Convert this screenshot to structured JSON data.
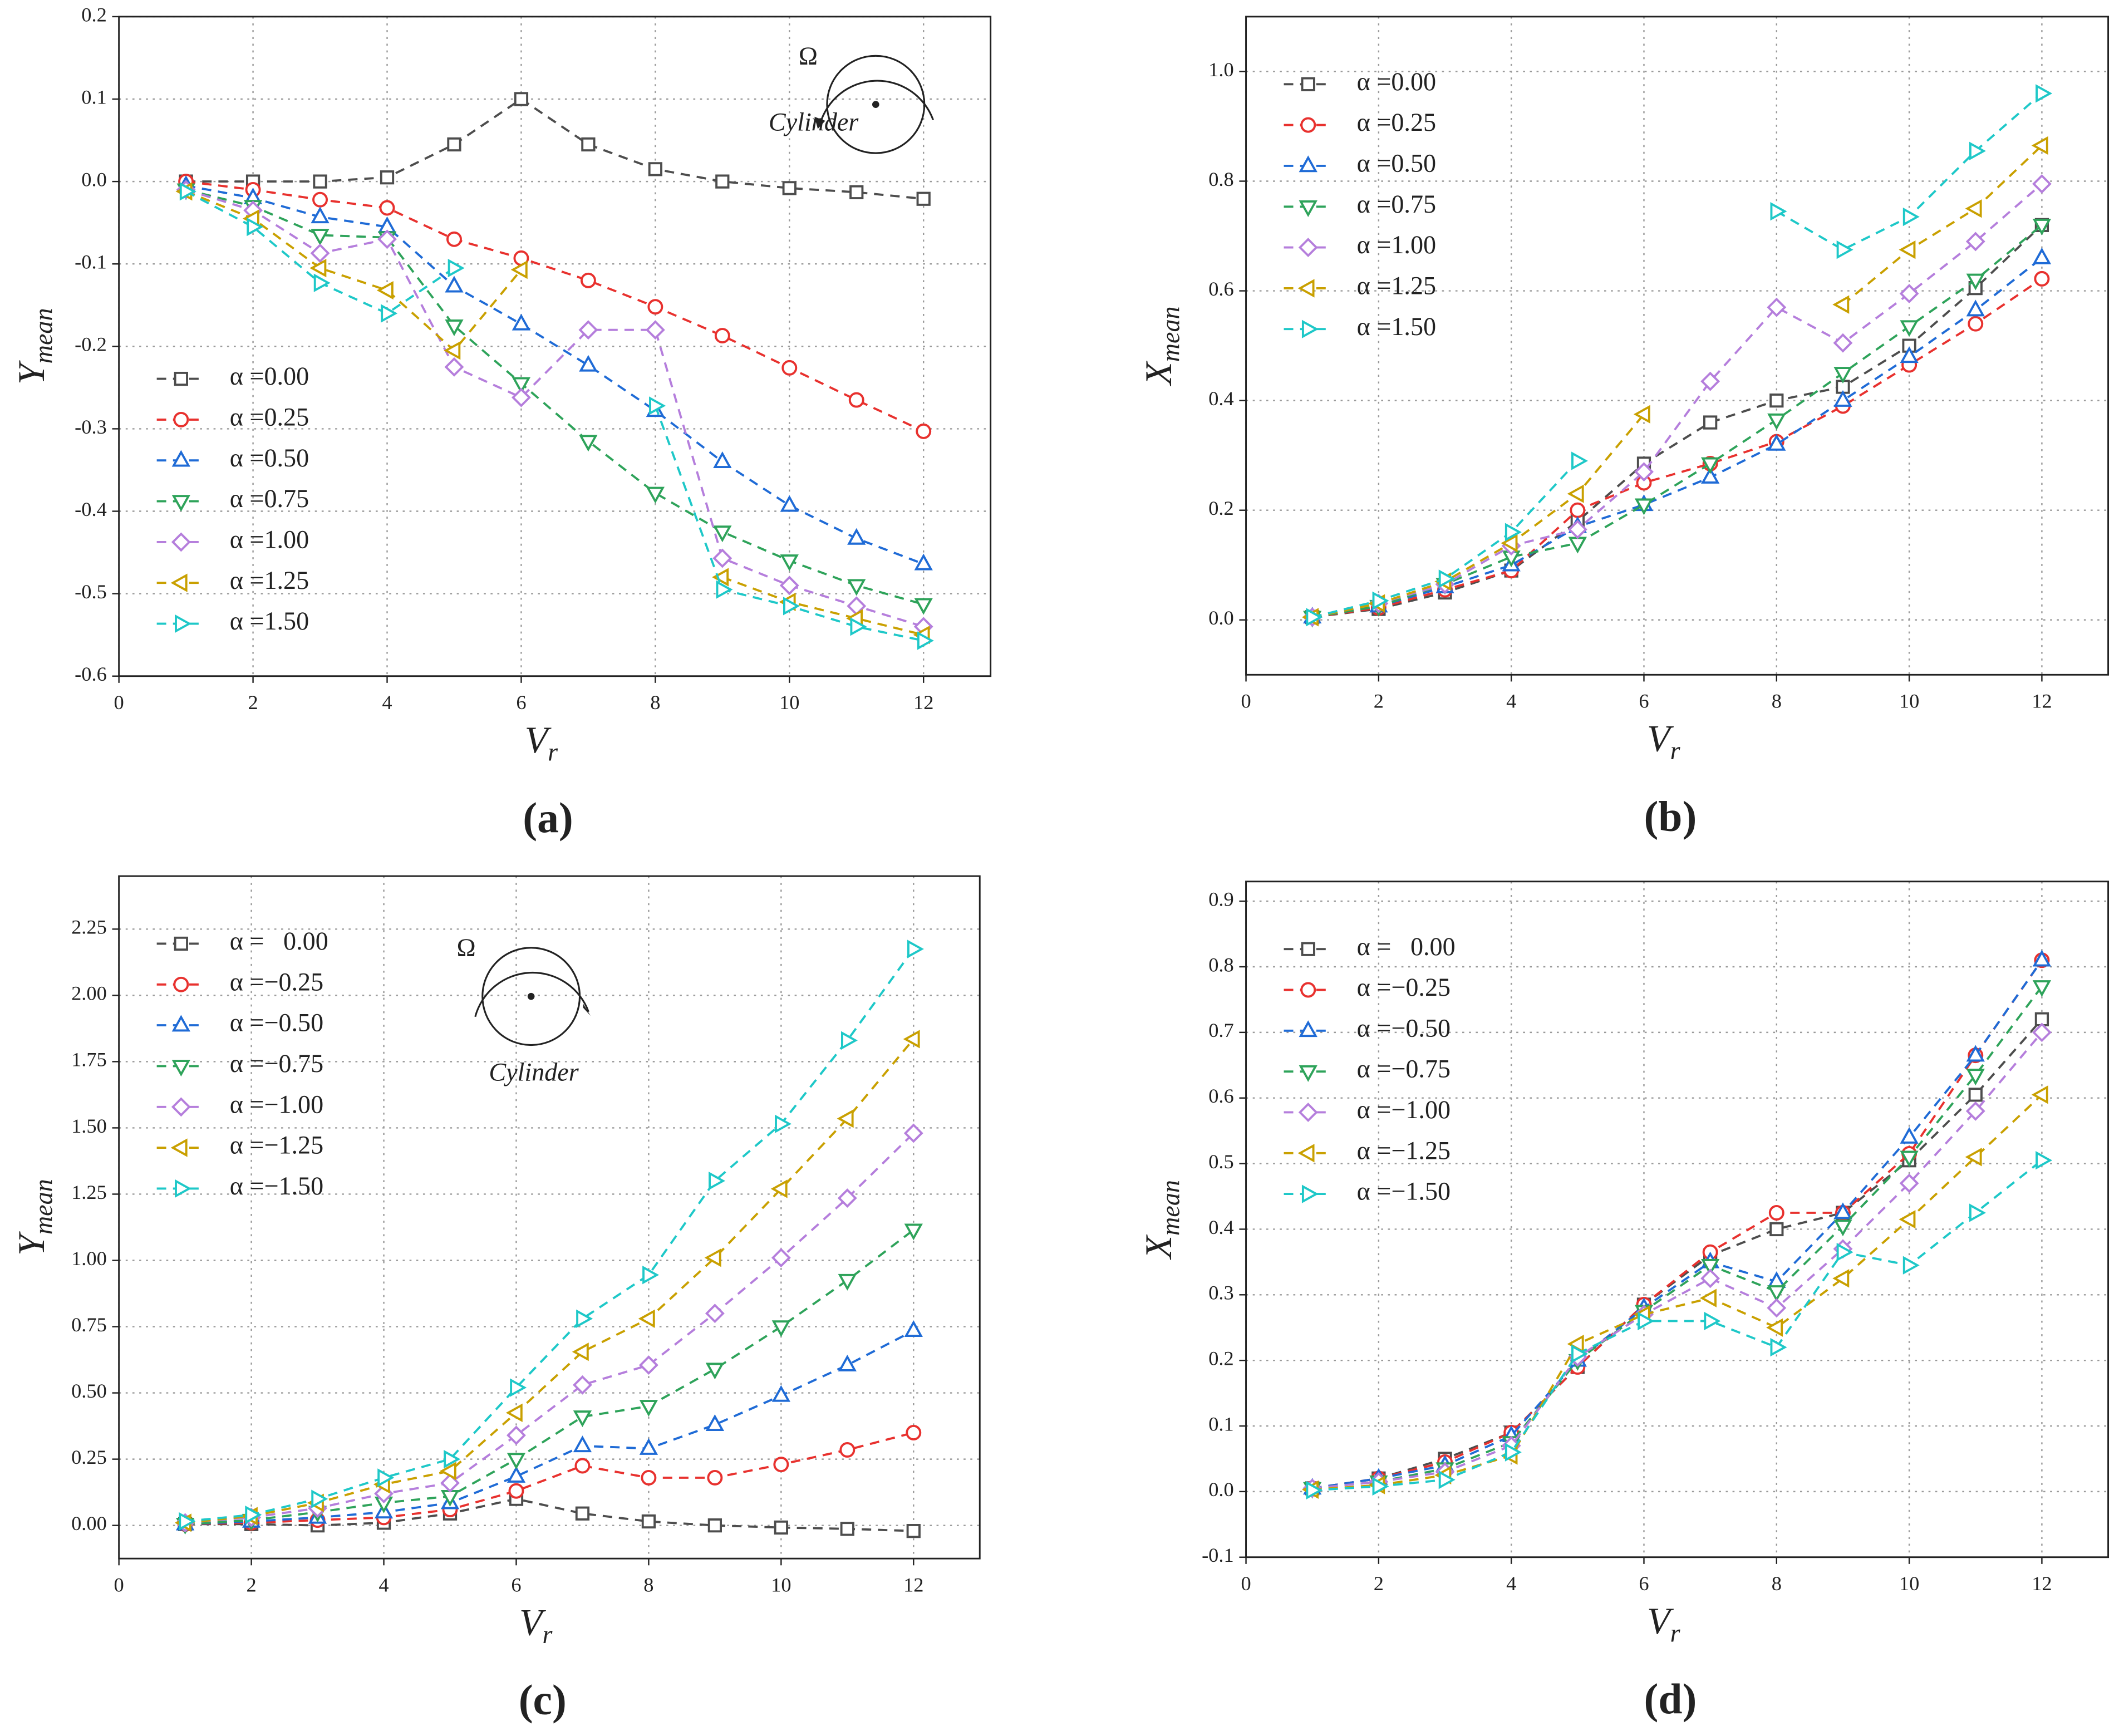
{
  "chart_data": [
    {
      "type": "line",
      "panel": "(a)",
      "xlabel": "V",
      "xlabel_sub": "r",
      "ylabel": "Y",
      "ylabel_sub": "mean",
      "inset": {
        "omega": "Ω",
        "label": "Cylinder",
        "rotation": "counterclockwise"
      },
      "x": [
        1,
        2,
        3,
        4,
        5,
        6,
        7,
        8,
        9,
        10,
        11,
        12
      ],
      "xlim": [
        0,
        13
      ],
      "xticks": [
        0,
        2,
        4,
        6,
        8,
        10,
        12
      ],
      "ylim": [
        -0.6,
        0.2
      ],
      "yticks": [
        -0.6,
        -0.5,
        -0.4,
        -0.3,
        -0.2,
        -0.1,
        {
          "value": 0,
          "label": "0.0"
        },
        0.1,
        0.2
      ],
      "grid": true,
      "legend": "lower left",
      "series": [
        {
          "name": "α =0.00",
          "color": "#4d4d4d",
          "marker": "square",
          "values": [
            0,
            0,
            0,
            0.005,
            0.045,
            0.1,
            0.045,
            0.015,
            0,
            -0.008,
            -0.013,
            -0.021
          ]
        },
        {
          "name": "α =0.25",
          "color": "#e8312e",
          "marker": "circle",
          "values": [
            0,
            -0.01,
            -0.022,
            -0.032,
            -0.07,
            -0.093,
            -0.12,
            -0.152,
            -0.187,
            -0.226,
            -0.265,
            -0.303
          ]
        },
        {
          "name": "α =0.50",
          "color": "#1f6bd6",
          "marker": "triangle-up",
          "values": [
            -0.005,
            -0.02,
            -0.043,
            -0.055,
            -0.127,
            -0.173,
            -0.223,
            -0.278,
            -0.34,
            -0.393,
            -0.433,
            -0.464
          ]
        },
        {
          "name": "α =0.75",
          "color": "#2ea35a",
          "marker": "triangle-down",
          "values": [
            -0.01,
            -0.03,
            -0.065,
            -0.068,
            -0.175,
            -0.245,
            -0.315,
            -0.378,
            -0.425,
            -0.46,
            -0.49,
            -0.513
          ]
        },
        {
          "name": "α =1.00",
          "color": "#b57edc",
          "marker": "diamond",
          "values": [
            -0.01,
            -0.035,
            -0.087,
            -0.07,
            -0.225,
            -0.262,
            -0.18,
            -0.18,
            -0.457,
            -0.49,
            -0.515,
            -0.54
          ]
        },
        {
          "name": "α =1.25",
          "color": "#c9a000",
          "marker": "triangle-left",
          "values": [
            -0.012,
            -0.045,
            -0.105,
            -0.132,
            -0.205,
            -0.107,
            null,
            null,
            -0.48,
            -0.51,
            -0.53,
            -0.55
          ]
        },
        {
          "name": "α =1.50",
          "color": "#1ec8c8",
          "marker": "triangle-right",
          "values": [
            -0.012,
            -0.055,
            -0.123,
            -0.16,
            -0.105,
            null,
            null,
            -0.272,
            -0.495,
            -0.515,
            -0.54,
            -0.557
          ]
        }
      ]
    },
    {
      "type": "line",
      "panel": "(b)",
      "xlabel": "V",
      "xlabel_sub": "r",
      "ylabel": "X",
      "ylabel_sub": "mean",
      "x": [
        1,
        2,
        3,
        4,
        5,
        6,
        7,
        8,
        9,
        10,
        11,
        12
      ],
      "xlim": [
        0,
        13
      ],
      "xticks": [
        0,
        2,
        4,
        6,
        8,
        10,
        12
      ],
      "ylim": [
        -0.1,
        1.1
      ],
      "yticks": [
        {
          "value": 0,
          "label": "0.0"
        },
        0.2,
        0.4,
        0.6,
        0.8,
        {
          "value": 1,
          "label": "1.0"
        }
      ],
      "grid": true,
      "legend": "upper left",
      "series": [
        {
          "name": "α =0.00",
          "color": "#4d4d4d",
          "marker": "square",
          "values": [
            0.005,
            0.02,
            0.05,
            0.09,
            0.18,
            0.285,
            0.36,
            0.4,
            0.425,
            0.5,
            0.605,
            0.72
          ]
        },
        {
          "name": "α =0.25",
          "color": "#e8312e",
          "marker": "circle",
          "values": [
            0.005,
            0.022,
            0.055,
            0.09,
            0.2,
            0.25,
            0.285,
            0.325,
            0.39,
            0.465,
            0.54,
            0.622
          ]
        },
        {
          "name": "α =0.50",
          "color": "#1f6bd6",
          "marker": "triangle-up",
          "values": [
            0.005,
            0.025,
            0.06,
            0.1,
            0.17,
            0.21,
            0.26,
            0.32,
            0.4,
            0.48,
            0.565,
            0.66
          ]
        },
        {
          "name": "α =0.75",
          "color": "#2ea35a",
          "marker": "triangle-down",
          "values": [
            0.005,
            0.025,
            0.065,
            0.115,
            0.14,
            0.21,
            0.285,
            0.365,
            0.45,
            0.535,
            0.62,
            0.72
          ]
        },
        {
          "name": "α =1.00",
          "color": "#b57edc",
          "marker": "diamond",
          "values": [
            0.005,
            0.03,
            0.065,
            0.135,
            0.165,
            0.27,
            0.435,
            0.57,
            0.505,
            0.595,
            0.69,
            0.795
          ]
        },
        {
          "name": "α =1.25",
          "color": "#c9a000",
          "marker": "triangle-left",
          "values": [
            0.005,
            0.03,
            0.07,
            0.14,
            0.23,
            0.375,
            null,
            null,
            0.575,
            0.675,
            0.75,
            0.865
          ]
        },
        {
          "name": "α =1.50",
          "color": "#1ec8c8",
          "marker": "triangle-right",
          "values": [
            0.005,
            0.035,
            0.075,
            0.16,
            0.29,
            null,
            null,
            0.745,
            0.675,
            0.735,
            0.855,
            0.96
          ]
        }
      ]
    },
    {
      "type": "line",
      "panel": "(c)",
      "xlabel": "V",
      "xlabel_sub": "r",
      "ylabel": "Y",
      "ylabel_sub": "mean",
      "inset": {
        "omega": "Ω",
        "label": "Cylinder",
        "rotation": "clockwise"
      },
      "x": [
        1,
        2,
        3,
        4,
        5,
        6,
        7,
        8,
        9,
        10,
        11,
        12
      ],
      "xlim": [
        0,
        13
      ],
      "xticks": [
        0,
        2,
        4,
        6,
        8,
        10,
        12
      ],
      "ylim": [
        -0.125,
        2.45
      ],
      "yticks": [
        {
          "value": 0,
          "label": "0.00"
        },
        0.25,
        {
          "value": 0.5,
          "label": "0.50"
        },
        0.75,
        {
          "value": 1,
          "label": "1.00"
        },
        1.25,
        {
          "value": 1.5,
          "label": "1.50"
        },
        1.75,
        {
          "value": 2,
          "label": "2.00"
        },
        2.25
      ],
      "grid": true,
      "legend": "upper left",
      "series": [
        {
          "name": "α =   0.00",
          "color": "#4d4d4d",
          "marker": "square",
          "values": [
            0.005,
            0.005,
            0,
            0.01,
            0.045,
            0.1,
            0.045,
            0.015,
            0,
            -0.008,
            -0.013,
            -0.021
          ]
        },
        {
          "name": "α =−0.25",
          "color": "#e8312e",
          "marker": "circle",
          "values": [
            0.005,
            0.01,
            0.02,
            0.03,
            0.06,
            0.13,
            0.225,
            0.18,
            0.18,
            0.23,
            0.285,
            0.35
          ]
        },
        {
          "name": "α =−0.50",
          "color": "#1f6bd6",
          "marker": "triangle-up",
          "values": [
            0.005,
            0.015,
            0.03,
            0.05,
            0.085,
            0.185,
            0.3,
            0.29,
            0.38,
            0.49,
            0.605,
            0.735
          ]
        },
        {
          "name": "α =−0.75",
          "color": "#2ea35a",
          "marker": "triangle-down",
          "values": [
            0.005,
            0.02,
            0.05,
            0.085,
            0.11,
            0.25,
            0.41,
            0.45,
            0.59,
            0.75,
            0.925,
            1.115
          ]
        },
        {
          "name": "α =−1.00",
          "color": "#b57edc",
          "marker": "diamond",
          "values": [
            0.01,
            0.03,
            0.065,
            0.12,
            0.16,
            0.34,
            0.53,
            0.605,
            0.8,
            1.01,
            1.235,
            1.48
          ]
        },
        {
          "name": "α =−1.25",
          "color": "#c9a000",
          "marker": "triangle-left",
          "values": [
            0.01,
            0.035,
            0.085,
            0.155,
            0.205,
            0.425,
            0.655,
            0.78,
            1.01,
            1.27,
            1.535,
            1.835
          ]
        },
        {
          "name": "α =−1.50",
          "color": "#1ec8c8",
          "marker": "triangle-right",
          "values": [
            0.015,
            0.04,
            0.1,
            0.18,
            0.25,
            0.52,
            0.78,
            0.945,
            1.3,
            1.515,
            1.83,
            2.175
          ]
        }
      ]
    },
    {
      "type": "line",
      "panel": "(d)",
      "xlabel": "V",
      "xlabel_sub": "r",
      "ylabel": "X",
      "ylabel_sub": "mean",
      "x": [
        1,
        2,
        3,
        4,
        5,
        6,
        7,
        8,
        9,
        10,
        11,
        12
      ],
      "xlim": [
        0,
        13
      ],
      "xticks": [
        0,
        2,
        4,
        6,
        8,
        10,
        12
      ],
      "ylim": [
        -0.1,
        0.93
      ],
      "yticks": [
        -0.1,
        {
          "value": 0,
          "label": "0.0"
        },
        0.1,
        0.2,
        0.3,
        0.4,
        0.5,
        0.6,
        0.7,
        0.8,
        0.9
      ],
      "grid": true,
      "legend": "upper left",
      "series": [
        {
          "name": "α =   0.00",
          "color": "#4d4d4d",
          "marker": "square",
          "values": [
            0.005,
            0.02,
            0.05,
            0.09,
            0.19,
            0.285,
            0.36,
            0.4,
            0.425,
            0.505,
            0.605,
            0.72
          ]
        },
        {
          "name": "α =−0.25",
          "color": "#e8312e",
          "marker": "circle",
          "values": [
            0.005,
            0.02,
            0.045,
            0.09,
            0.19,
            0.285,
            0.365,
            0.425,
            0.425,
            0.515,
            0.665,
            0.81
          ]
        },
        {
          "name": "α =−0.50",
          "color": "#1f6bd6",
          "marker": "triangle-up",
          "values": [
            0.005,
            0.02,
            0.04,
            0.085,
            0.2,
            0.28,
            0.35,
            0.32,
            0.425,
            0.54,
            0.665,
            0.81
          ]
        },
        {
          "name": "α =−0.75",
          "color": "#2ea35a",
          "marker": "triangle-down",
          "values": [
            0.005,
            0.015,
            0.035,
            0.075,
            0.2,
            0.275,
            0.345,
            0.305,
            0.405,
            0.51,
            0.635,
            0.77
          ]
        },
        {
          "name": "α =−1.00",
          "color": "#b57edc",
          "marker": "diamond",
          "values": [
            0.005,
            0.015,
            0.03,
            0.07,
            0.205,
            0.27,
            0.325,
            0.28,
            0.37,
            0.47,
            0.58,
            0.7
          ]
        },
        {
          "name": "α =−1.25",
          "color": "#c9a000",
          "marker": "triangle-left",
          "values": [
            0.003,
            0.01,
            0.025,
            0.055,
            0.225,
            0.27,
            0.295,
            0.25,
            0.325,
            0.415,
            0.51,
            0.605
          ]
        },
        {
          "name": "α =−1.50",
          "color": "#1ec8c8",
          "marker": "triangle-right",
          "values": [
            0.002,
            0.008,
            0.018,
            0.06,
            0.21,
            0.26,
            0.26,
            0.22,
            0.365,
            0.345,
            0.425,
            0.505
          ]
        }
      ]
    }
  ]
}
